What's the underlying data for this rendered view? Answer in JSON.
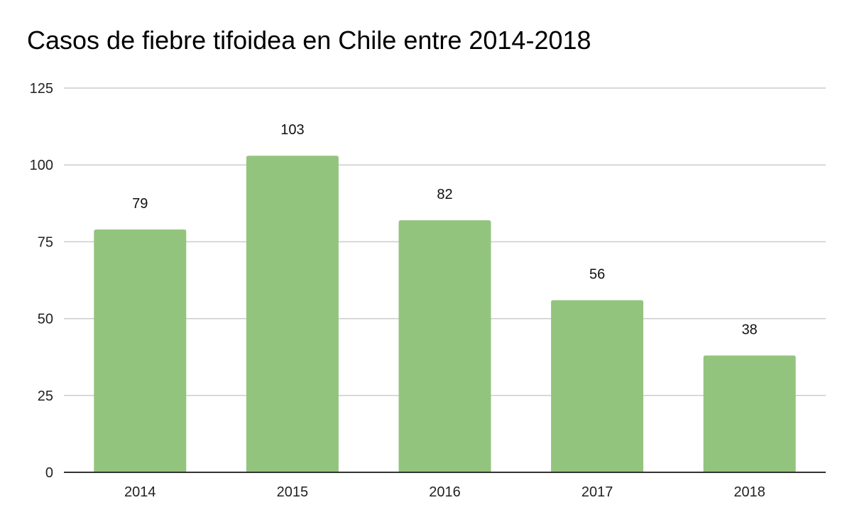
{
  "chart_data": {
    "type": "bar",
    "title": "Casos de fiebre tifoidea en Chile entre 2014-2018",
    "xlabel": "",
    "ylabel": "",
    "categories": [
      "2014",
      "2015",
      "2016",
      "2017",
      "2018"
    ],
    "values": [
      79,
      103,
      82,
      56,
      38
    ],
    "data_labels": [
      "79",
      "103",
      "82",
      "56",
      "38"
    ],
    "ylim": [
      0,
      125
    ],
    "yticks": [
      "0",
      "25",
      "50",
      "75",
      "100",
      "125"
    ],
    "grid": true,
    "legend": "none",
    "colors": {
      "bar": "#93c47d",
      "grid": "#cccccc",
      "axis": "#333333",
      "text": "#000000"
    }
  }
}
